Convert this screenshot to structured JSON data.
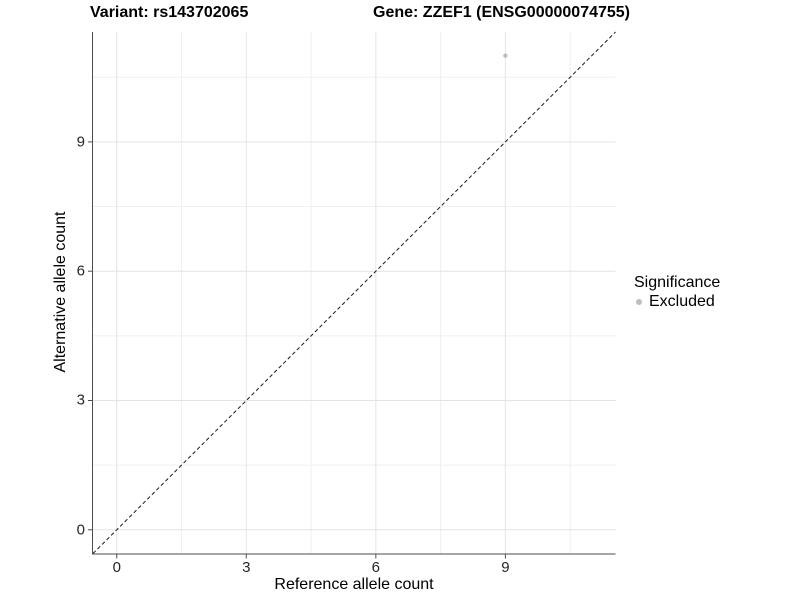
{
  "header": {
    "variant_title": "Variant: rs143702065",
    "gene_title": "Gene: ZZEF1 (ENSG00000074755)"
  },
  "axes": {
    "x_title": "Reference allele count",
    "y_title": "Alternative allele count",
    "x_tick_labels": [
      "0",
      "3",
      "6",
      "9"
    ],
    "y_tick_labels": [
      "0",
      "3",
      "6",
      "9"
    ]
  },
  "legend": {
    "title": "Significance",
    "entries": [
      {
        "label": "Excluded",
        "color": "#bebebe",
        "marker": "circle"
      }
    ]
  },
  "chart_data": {
    "type": "scatter",
    "title_left": "Variant: rs143702065",
    "title_right": "Gene: ZZEF1 (ENSG00000074755)",
    "xlabel": "Reference allele count",
    "ylabel": "Alternative allele count",
    "xlim": [
      -0.55,
      11.55
    ],
    "ylim": [
      -0.55,
      11.55
    ],
    "x_major_ticks": [
      0,
      3,
      6,
      9
    ],
    "y_major_ticks": [
      0,
      3,
      6,
      9
    ],
    "x_minor_gridlines": [
      1.5,
      4.5,
      7.5,
      10.5
    ],
    "y_minor_gridlines": [
      1.5,
      4.5,
      7.5,
      10.5
    ],
    "grid": "major+minor",
    "legend_position": "right",
    "series": [
      {
        "name": "Excluded",
        "color": "#bebebe",
        "marker": "circle",
        "points": [
          {
            "x": 9,
            "y": 11
          }
        ]
      }
    ],
    "reference_line": {
      "kind": "identity",
      "equation": "y = x",
      "from": [
        -0.55,
        -0.55
      ],
      "to": [
        11.55,
        11.55
      ],
      "style": "dashed",
      "color": "#1a1a1a"
    }
  },
  "colors": {
    "background": "#ffffff",
    "grid_major": "#e4e4e4",
    "grid_minor": "#efefef",
    "axis_line": "#4d4d4d",
    "tick_label": "#262626",
    "point": "#bebebe"
  }
}
